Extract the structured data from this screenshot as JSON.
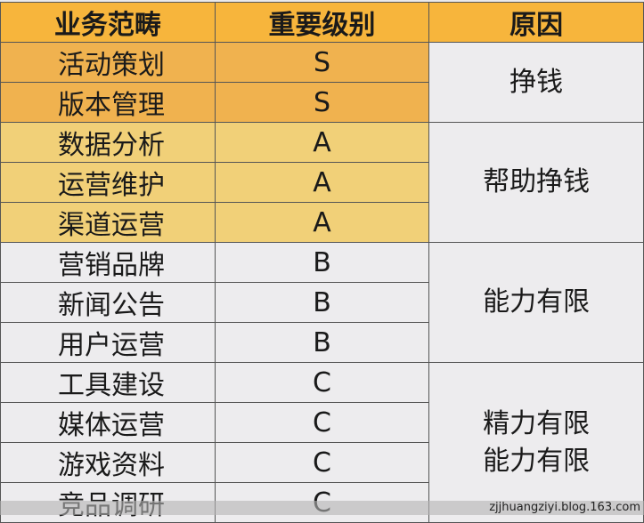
{
  "headers": [
    "业务范畴",
    "重要级别",
    "原因"
  ],
  "rows": [
    {
      "category": "活动策划",
      "level": "S"
    },
    {
      "category": "版本管理",
      "level": "S"
    },
    {
      "category": "数据分析",
      "level": "A"
    },
    {
      "category": "运营维护",
      "level": "A"
    },
    {
      "category": "渠道运营",
      "level": "A"
    },
    {
      "category": "营销品牌",
      "level": "B"
    },
    {
      "category": "新闻公告",
      "level": "B"
    },
    {
      "category": "用户运营",
      "level": "B"
    },
    {
      "category": "工具建设",
      "level": "C"
    },
    {
      "category": "媒体运营",
      "level": "C"
    },
    {
      "category": "游戏资料",
      "level": "C"
    },
    {
      "category": "竞品调研",
      "level": "C"
    }
  ],
  "reasons": {
    "s": "挣钱",
    "a": "帮助挣钱",
    "b": "能力有限",
    "c1": "精力有限",
    "c2": "能力有限"
  },
  "colors": {
    "header": "#f7b53c",
    "level_s": "#f0b24f",
    "level_a": "#f1d078",
    "other": "#edecee"
  },
  "watermark": "zjjhuangziyi.blog.163.com"
}
